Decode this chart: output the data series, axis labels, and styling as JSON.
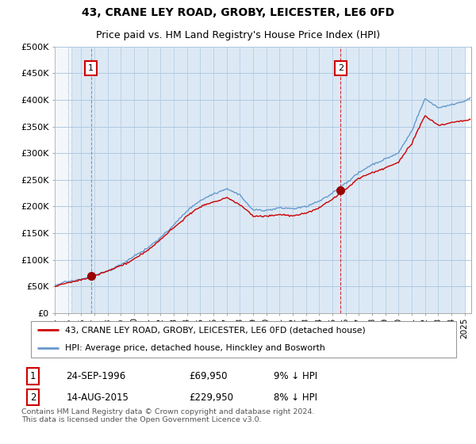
{
  "title": "43, CRANE LEY ROAD, GROBY, LEICESTER, LE6 0FD",
  "subtitle": "Price paid vs. HM Land Registry's House Price Index (HPI)",
  "ylim": [
    0,
    500000
  ],
  "yticks": [
    0,
    50000,
    100000,
    150000,
    200000,
    250000,
    300000,
    350000,
    400000,
    450000,
    500000
  ],
  "ytick_labels": [
    "£0",
    "£50K",
    "£100K",
    "£150K",
    "£200K",
    "£250K",
    "£300K",
    "£350K",
    "£400K",
    "£450K",
    "£500K"
  ],
  "xlim_start": 1994.0,
  "xlim_end": 2025.5,
  "sale1_x": 1996.73,
  "sale1_y": 69950,
  "sale1_label": "1",
  "sale1_date": "24-SEP-1996",
  "sale1_price": "£69,950",
  "sale1_hpi": "9% ↓ HPI",
  "sale2_x": 2015.62,
  "sale2_y": 229950,
  "sale2_label": "2",
  "sale2_date": "14-AUG-2015",
  "sale2_price": "£229,950",
  "sale2_hpi": "8% ↓ HPI",
  "vline1_x": 1996.73,
  "vline2_x": 2015.62,
  "red_line_color": "#cc0000",
  "blue_line_color": "#6699cc",
  "legend_label_red": "43, CRANE LEY ROAD, GROBY, LEICESTER, LE6 0FD (detached house)",
  "legend_label_blue": "HPI: Average price, detached house, Hinckley and Bosworth",
  "footer": "Contains HM Land Registry data © Crown copyright and database right 2024.\nThis data is licensed under the Open Government Licence v3.0.",
  "plot_bg": "#dce9f5",
  "hatch_color": "#c5d5e8",
  "grid_color": "#b0c8e0",
  "title_fontsize": 10,
  "subtitle_fontsize": 9
}
